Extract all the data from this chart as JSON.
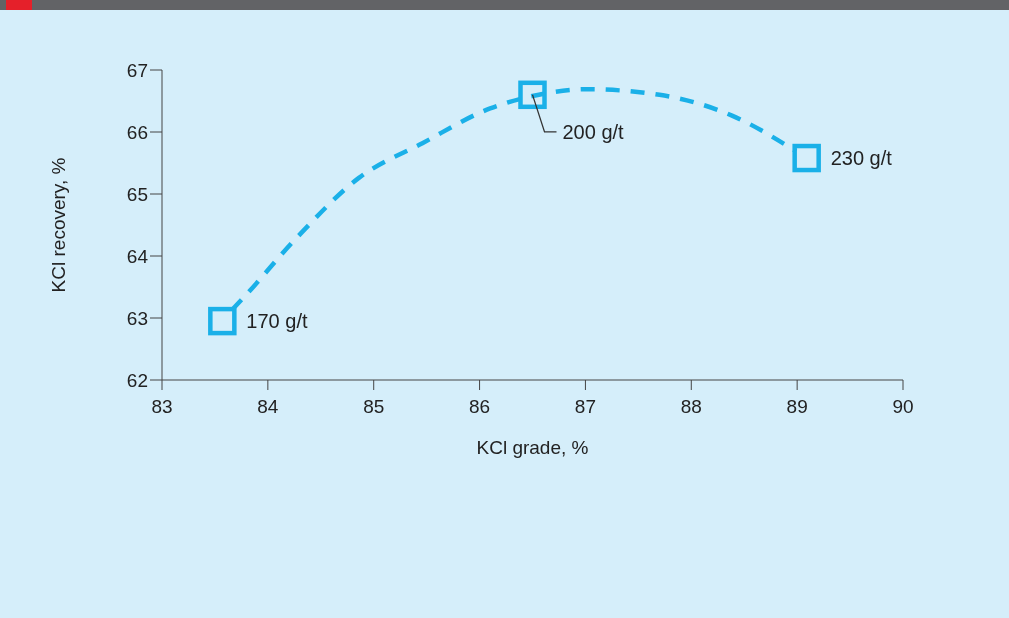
{
  "chart_data": {
    "type": "scatter",
    "xlabel": "KCl grade, %",
    "ylabel": "KCl recovery, %",
    "xlim": [
      83,
      90
    ],
    "xticks": [
      83,
      84,
      85,
      86,
      87,
      88,
      89,
      90
    ],
    "ylim": [
      62,
      67
    ],
    "yticks": [
      62,
      63,
      64,
      65,
      66,
      67
    ],
    "grid": false,
    "marker": "square",
    "line_style": "dashed",
    "series": [
      {
        "type": "line",
        "marker": "none",
        "color": "#1ab0e8",
        "x": [
          83.66,
          83.76,
          84.27,
          84.86,
          85.46,
          86.1,
          86.5,
          87.01,
          87.7,
          88.39,
          88.99
        ],
        "values": [
          63.13,
          63.31,
          64.29,
          65.26,
          65.82,
          66.38,
          66.58,
          66.69,
          66.6,
          66.26,
          65.69
        ]
      },
      {
        "color": "#1ab0e8",
        "x": [
          83.57,
          86.5,
          89.09
        ],
        "values": [
          62.95,
          66.6,
          65.58
        ]
      }
    ],
    "annotations": [
      {
        "text": "170 g/t",
        "x": 83.57,
        "y": 62.95
      },
      {
        "text": "200 g/t",
        "x": 86.5,
        "y": 66.6
      },
      {
        "text": "230 g/t",
        "x": 89.09,
        "y": 65.58
      }
    ]
  }
}
